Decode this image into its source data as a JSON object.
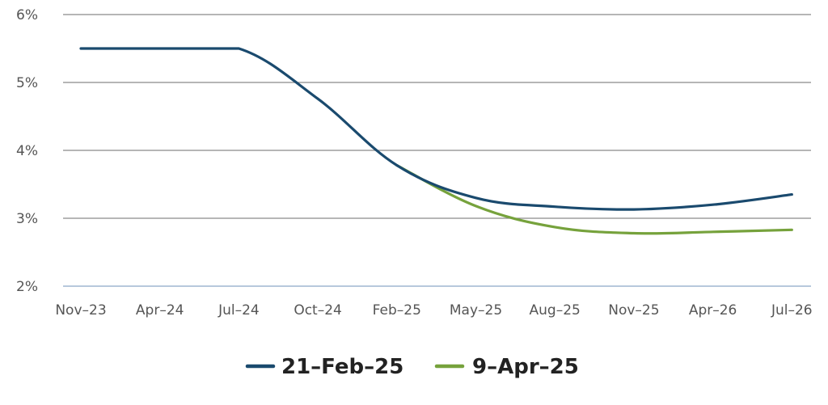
{
  "chart_data": {
    "type": "line",
    "title": "",
    "xlabel": "",
    "ylabel": "",
    "x_tick_labels": [
      "Nov–23",
      "Apr–24",
      "Jul–24",
      "Oct–24",
      "Feb–25",
      "May–25",
      "Aug–25",
      "Nov–25",
      "Apr–26",
      "Jul–26"
    ],
    "y_tick_labels": [
      "2%",
      "3%",
      "4%",
      "5%",
      "6%"
    ],
    "y_ticks": [
      2,
      3,
      4,
      5,
      6
    ],
    "ylim": [
      2,
      6
    ],
    "grid": true,
    "legend_position": "bottom-center",
    "series": [
      {
        "name": "21–Feb–25",
        "color": "#1a4a6e",
        "x": [
          "Nov–23",
          "Apr–24",
          "Jul–24",
          "Oct–24",
          "Feb–25",
          "May–25",
          "Aug–25",
          "Nov–25",
          "Apr–26",
          "Jul–26"
        ],
        "values": [
          5.5,
          5.5,
          5.5,
          4.76,
          3.78,
          3.3,
          3.17,
          3.13,
          3.2,
          3.35
        ]
      },
      {
        "name": "9–Apr–25",
        "color": "#76a23c",
        "x": [
          "Feb–25",
          "May–25",
          "Aug–25",
          "Nov–25",
          "Apr–26",
          "Jul–26"
        ],
        "values": [
          3.78,
          3.18,
          2.87,
          2.78,
          2.8,
          2.83
        ]
      }
    ]
  }
}
